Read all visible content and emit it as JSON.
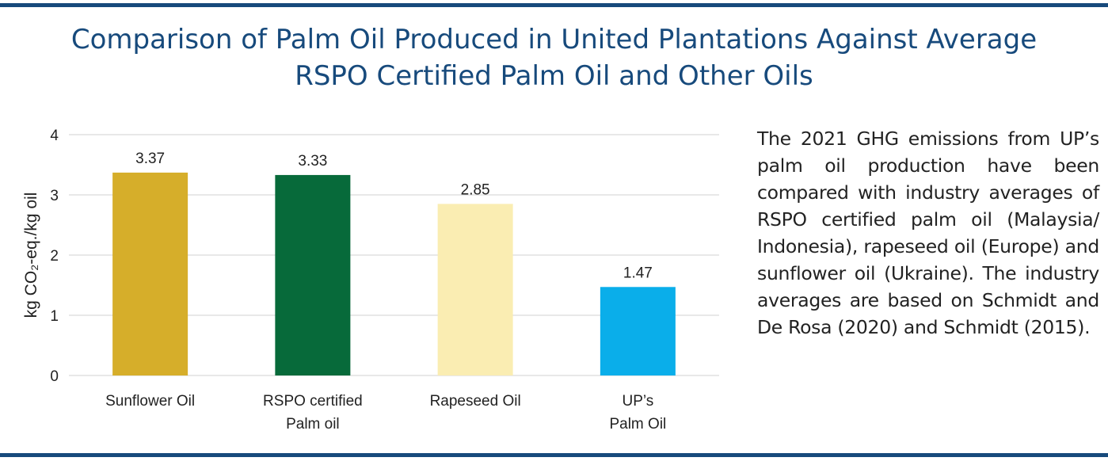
{
  "page": {
    "title_line1": "Comparison of Palm Oil Produced in United Plantations Against Average",
    "title_line2": "RSPO Certified Palm Oil and Other Oils",
    "description": "The 2021 GHG emissions from UP’s palm oil production have been compared with industry averages of RSPO certified palm oil (Malaysia/ Indonesia), rapeseed oil (Europe) and sunflower oil (Ukraine). The industry averages are based on Schmidt and De Rosa (2020) and Schmidt (2015).",
    "colors": {
      "rule": "#174a7c",
      "title": "#174a7c"
    }
  },
  "chart_data": {
    "type": "bar",
    "title": "",
    "xlabel": "",
    "ylabel": "kg CO₂-eq./kg oil",
    "ylim": [
      0,
      4
    ],
    "yticks": [
      0,
      1,
      2,
      3,
      4
    ],
    "grid": true,
    "categories": [
      "Sunflower Oil",
      "RSPO certified\nPalm oil",
      "Rapeseed Oil",
      "UP’s\nPalm Oil"
    ],
    "values": [
      3.37,
      3.33,
      2.85,
      1.47
    ],
    "value_labels": [
      "3.37",
      "3.33",
      "2.85",
      "1.47"
    ],
    "colors": [
      "#d6ae2a",
      "#076a3a",
      "#faedb2",
      "#0aaeea"
    ]
  }
}
